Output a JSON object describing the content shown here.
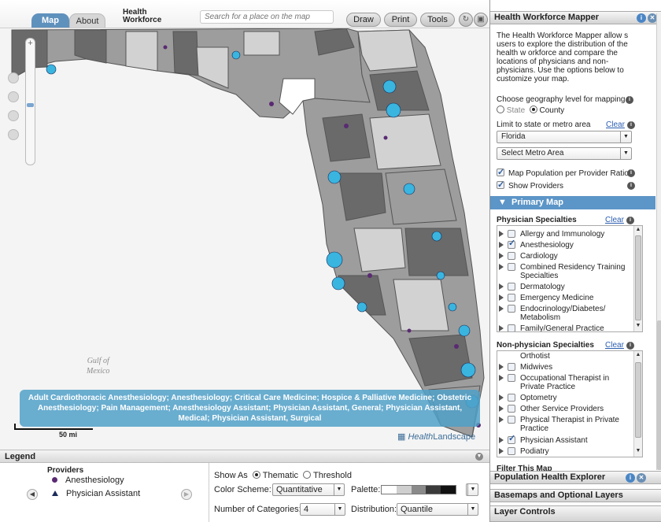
{
  "topbar": {
    "tab_map": "Map",
    "tab_about": "About",
    "brand_line1": "Health",
    "brand_line2": "Workforce",
    "search_placeholder": "Search for a place on the map",
    "draw": "Draw",
    "print": "Print",
    "tools": "Tools"
  },
  "map": {
    "gulf_line1": "Gulf of",
    "gulf_line2": "Mexico",
    "caption": "Adult Cardiothoracic Anesthesiology; Anesthesiology; Critical Care Medicine; Hospice & Palliative Medicine; Obstetric Anesthesiology; Pain Management; Anesthesiology Assistant; Physician Assistant, General; Physician Assistant, Medical; Physician Assistant, Surgical",
    "scale": "50 mi",
    "brand_a": "Health",
    "brand_b": "Landscape",
    "colors": {
      "provider_anesth": "#5a2a73",
      "provider_pa": "#39b5e0",
      "county_shades": [
        "#ffffff",
        "#d2d2d2",
        "#9d9d9d",
        "#6a6a6a"
      ]
    }
  },
  "legend": {
    "title": "Legend",
    "providers_header": "Providers",
    "item_anesth": "Anesthesiology",
    "item_pa": "Physician Assistant"
  },
  "options": {
    "show_as_label": "Show As",
    "thematic": "Thematic",
    "threshold": "Threshold",
    "color_scheme_label": "Color Scheme:",
    "color_scheme_value": "Quantitative",
    "palette_label": "Palette:",
    "categories_label": "Number of Categories:",
    "categories_value": "4",
    "distribution_label": "Distribution:",
    "distribution_value": "Quantile"
  },
  "panel": {
    "title": "Health Workforce Mapper",
    "description": "The Health Workforce Mapper allow s users to explore the distribution of the health w orkforce and compare the locations of physicians and non-physicians. Use the options below to customize your map.",
    "geo_label": "Choose geography level for mapping",
    "geo_state": "State",
    "geo_county": "County",
    "limit_label": "Limit to state or metro area",
    "clear": "Clear",
    "state_value": "Florida",
    "metro_value": "Select Metro Area",
    "chk_ratio": "Map Population per Provider Ratio",
    "chk_show": "Show Providers",
    "primary_map": "Primary Map",
    "physician_header": "Physician Specialties",
    "physician_items": [
      "Allergy and Immunology",
      "Anesthesiology",
      "Cardiology",
      "Combined Residency Training Specialties",
      "Dermatology",
      "Emergency Medicine",
      "Endocrinology/Diabetes/ Metabolism",
      "Family/General Practice"
    ],
    "nonphysician_header": "Non-physician Specialties",
    "nonphysician_items": [
      "Orthotist",
      "Midwives",
      "Occupational Therapist in Private Practice",
      "Optometry",
      "Other Service Providers",
      "Physical Therapist in Private Practice",
      "Physician Assistant",
      "Podiatry"
    ],
    "filter": "Filter This Map",
    "pop_health": "Population Health Explorer",
    "basemaps": "Basemaps and Optional Layers",
    "layer_controls": "Layer Controls"
  }
}
